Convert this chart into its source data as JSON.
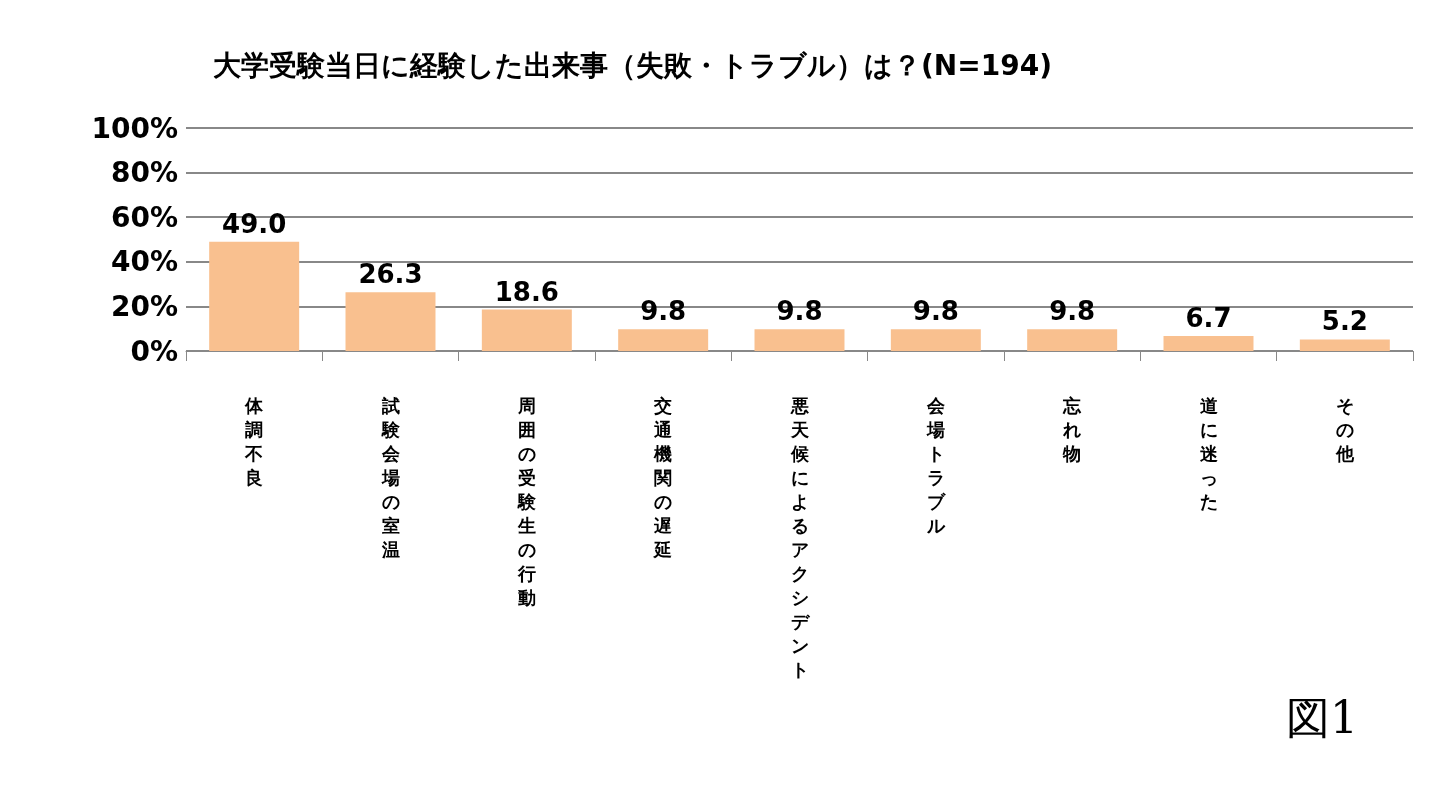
{
  "chart_data": {
    "type": "bar",
    "title": "大学受験当日に経験した出来事（失敗・トラブル）は？(N=194)",
    "categories": [
      "体調不良",
      "試験会場の室温",
      "周囲の受験生の行動",
      "交通機関の遅延",
      "悪天候によるアクシデント",
      "会場トラブル",
      "忘れ物",
      "道に迷った",
      "その他"
    ],
    "values": [
      49.0,
      26.3,
      18.6,
      9.8,
      9.8,
      9.8,
      9.8,
      6.7,
      5.2
    ],
    "value_labels": [
      "49.0",
      "26.3",
      "18.6",
      "9.8",
      "9.8",
      "9.8",
      "9.8",
      "6.7",
      "5.2"
    ],
    "color": "#f9c08f",
    "ylim": [
      0,
      100
    ],
    "yticks": [
      {
        "value": 0,
        "label": "0%"
      },
      {
        "value": 20,
        "label": "20%"
      },
      {
        "value": 40,
        "label": "40%"
      },
      {
        "value": 60,
        "label": "60%"
      },
      {
        "value": 80,
        "label": "80%"
      },
      {
        "value": 100,
        "label": "100%"
      }
    ],
    "grid": "y",
    "annotations": [
      "図1"
    ]
  }
}
